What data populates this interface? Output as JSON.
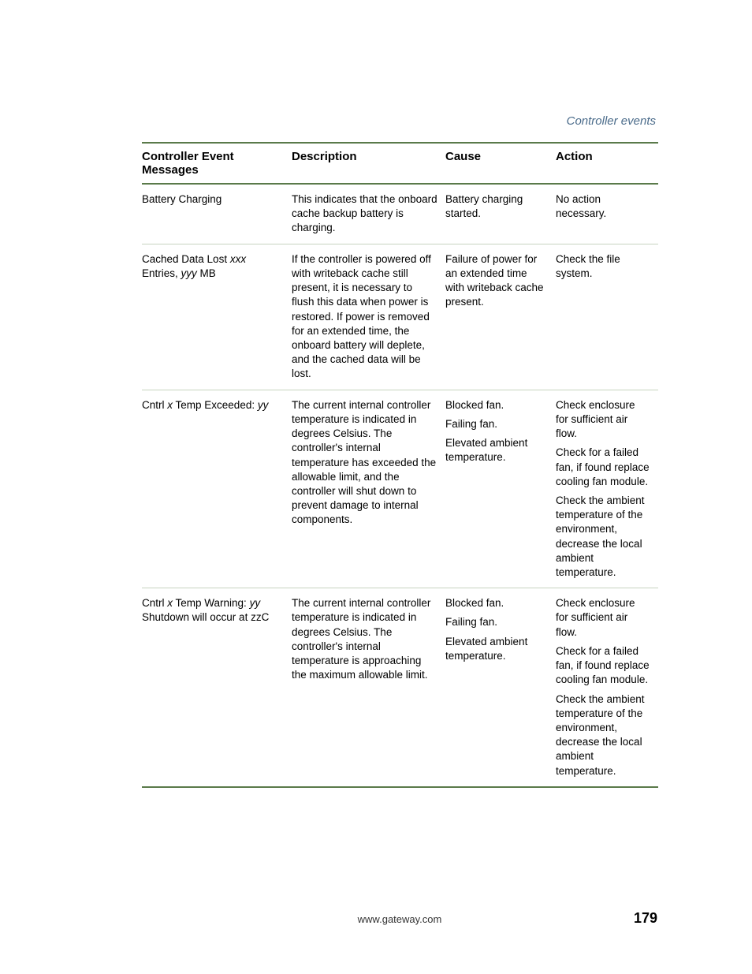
{
  "section_title": "Controller events",
  "headers": {
    "col1": "Controller Event Messages",
    "col2": "Description",
    "col3": "Cause",
    "col4": "Action"
  },
  "rows": [
    {
      "msg_parts": [
        {
          "text": "Battery Charging",
          "italic": false
        }
      ],
      "description": [
        "This indicates that the onboard cache backup battery is charging."
      ],
      "cause": [
        "Battery charging started."
      ],
      "action": [
        "No action necessary."
      ]
    },
    {
      "msg_parts": [
        {
          "text": "Cached Data Lost ",
          "italic": false
        },
        {
          "text": "xxx",
          "italic": true
        },
        {
          "text": " Entries, ",
          "italic": false
        },
        {
          "text": "yyy",
          "italic": true
        },
        {
          "text": " MB",
          "italic": false
        }
      ],
      "description": [
        "If the controller is powered off with writeback cache still present, it is necessary to flush this data when power is restored. If power is removed for an extended time, the onboard battery will deplete, and the cached data will be lost."
      ],
      "cause": [
        "Failure of power for an extended time with writeback cache present."
      ],
      "action": [
        "Check the file system."
      ]
    },
    {
      "msg_parts": [
        {
          "text": "Cntrl ",
          "italic": false
        },
        {
          "text": "x",
          "italic": true
        },
        {
          "text": " Temp Exceeded: ",
          "italic": false
        },
        {
          "text": "yy",
          "italic": true
        }
      ],
      "description": [
        "The current internal controller temperature is indicated in degrees Celsius. The controller's internal temperature has exceeded the allowable limit, and the controller will shut down to prevent damage to internal components."
      ],
      "cause": [
        "Blocked fan.",
        "Failing fan.",
        "Elevated ambient temperature."
      ],
      "action": [
        "Check enclosure for sufficient air flow.",
        "Check for a failed fan, if found replace cooling fan module.",
        "Check the ambient temperature of the environment, decrease the local ambient temperature."
      ]
    },
    {
      "msg_parts": [
        {
          "text": "Cntrl ",
          "italic": false
        },
        {
          "text": "x",
          "italic": true
        },
        {
          "text": " Temp Warning: ",
          "italic": false
        },
        {
          "text": "yy",
          "italic": true
        },
        {
          "text": " Shutdown will occur at zzC",
          "italic": false
        }
      ],
      "description": [
        "The current internal controller temperature is indicated in degrees Celsius. The controller's internal temperature is approaching the maximum allowable limit."
      ],
      "cause": [
        "Blocked fan.",
        "Failing fan.",
        "Elevated ambient temperature."
      ],
      "action": [
        "Check enclosure for sufficient air flow.",
        "Check for a failed fan, if found replace cooling fan module.",
        "Check the ambient temperature of the environment, decrease the local ambient temperature."
      ]
    }
  ],
  "footer": {
    "url": "www.gateway.com",
    "page": "179"
  }
}
